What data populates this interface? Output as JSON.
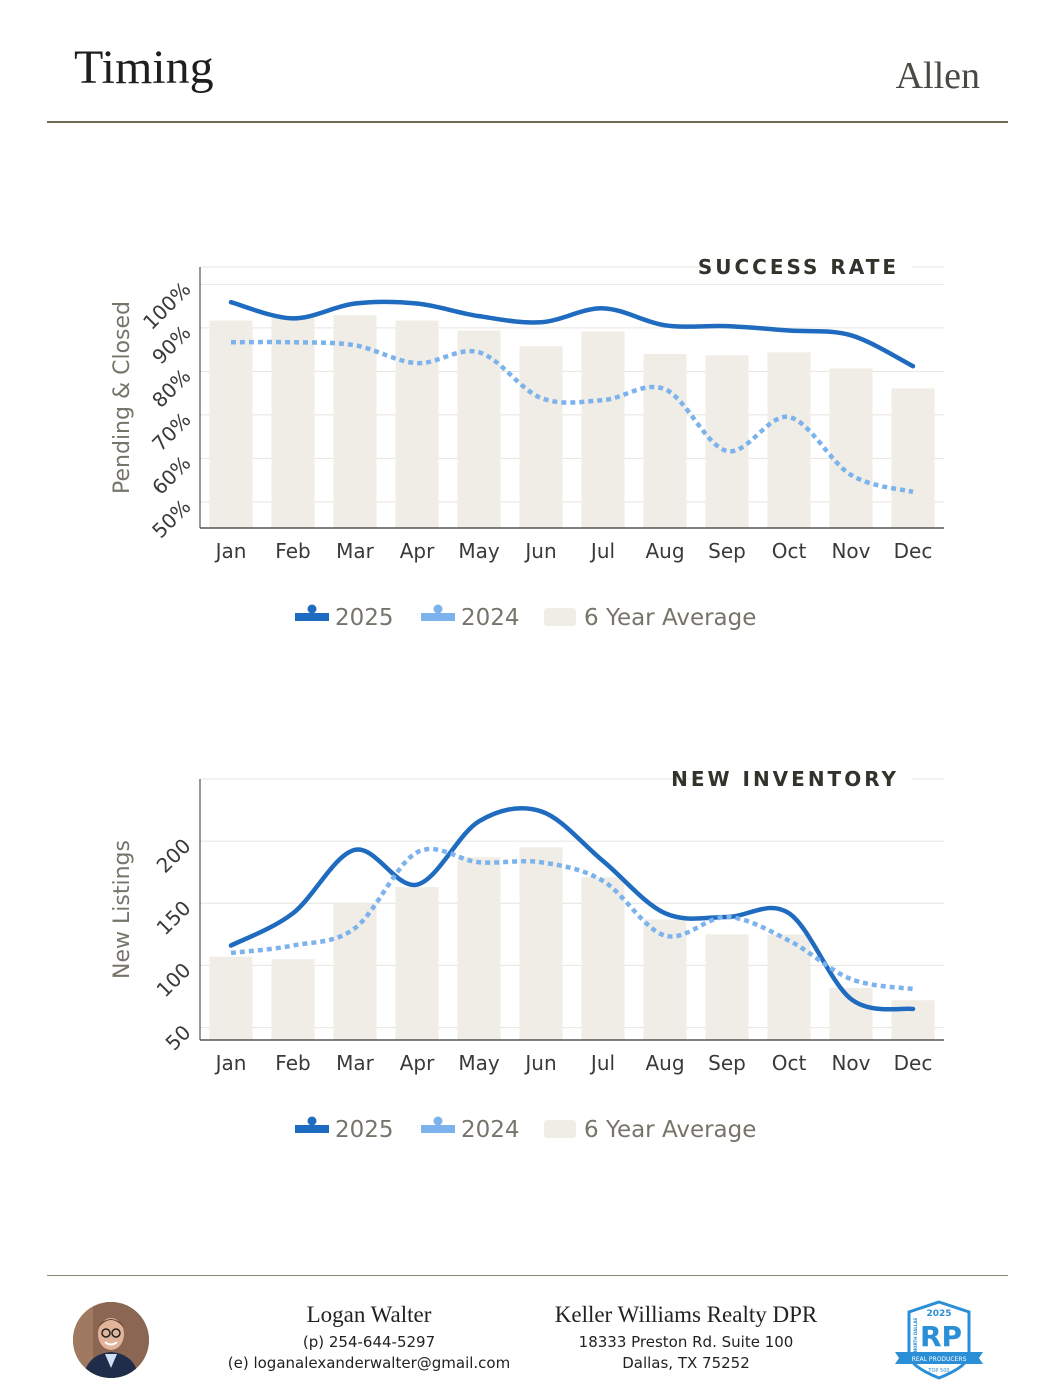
{
  "header": {
    "title": "Timing",
    "location": "Allen"
  },
  "colors": {
    "series_2025": "#1f6bbf",
    "series_2024": "#7db3ec",
    "average_bar": "#f0ede6",
    "axis_text": "#3a3a3a",
    "muted_text": "#77746a"
  },
  "chart_data": [
    {
      "type": "bar+line",
      "title": "SUCCESS RATE",
      "ylabel": "Pending & Closed",
      "ylim": [
        44,
        104
      ],
      "yticks": [
        50,
        60,
        70,
        80,
        90,
        100
      ],
      "ytick_labels": [
        "50%",
        "60%",
        "70%",
        "80%",
        "90%",
        "100%"
      ],
      "grid": true,
      "categories": [
        "Jan",
        "Feb",
        "Mar",
        "Apr",
        "May",
        "Jun",
        "Jul",
        "Aug",
        "Sep",
        "Oct",
        "Nov",
        "Dec"
      ],
      "series": [
        {
          "name": "2025",
          "kind": "line",
          "style": "solid",
          "color": "#1f6bbf",
          "values": [
            95.9,
            92.2,
            95.6,
            95.6,
            92.7,
            91.3,
            94.5,
            90.6,
            90.4,
            89.4,
            88.3,
            81.2
          ]
        },
        {
          "name": "2024",
          "kind": "line",
          "style": "dotted",
          "color": "#7db3ec",
          "values": [
            86.7,
            86.7,
            86.0,
            81.9,
            84.4,
            73.9,
            73.4,
            75.9,
            61.7,
            69.5,
            56.2,
            52.3
          ]
        },
        {
          "name": "6 Year Average",
          "kind": "bar",
          "color": "#f0ede6",
          "values": [
            91.7,
            92.4,
            92.9,
            91.7,
            89.4,
            85.8,
            89.2,
            84.0,
            83.7,
            84.4,
            80.7,
            76.1
          ]
        }
      ],
      "legend": [
        "2025",
        "2024",
        "6 Year Average"
      ],
      "legend_placement": "bottom"
    },
    {
      "type": "bar+line",
      "title": "NEW INVENTORY",
      "ylabel": "New Listings",
      "ylim": [
        40,
        250
      ],
      "yticks": [
        50,
        100,
        150,
        200
      ],
      "ytick_labels": [
        "50",
        "100",
        "150",
        "200"
      ],
      "grid": true,
      "categories": [
        "Jan",
        "Feb",
        "Mar",
        "Apr",
        "May",
        "Jun",
        "Jul",
        "Aug",
        "Sep",
        "Oct",
        "Nov",
        "Dec"
      ],
      "series": [
        {
          "name": "2025",
          "kind": "line",
          "style": "solid",
          "color": "#1f6bbf",
          "values": [
            116,
            142,
            193,
            165,
            216,
            224,
            184,
            142,
            139,
            142,
            73,
            65
          ]
        },
        {
          "name": "2024",
          "kind": "line",
          "style": "dotted",
          "color": "#7db3ec",
          "values": [
            110,
            116,
            130,
            191,
            183,
            183,
            168,
            124,
            139,
            120,
            89,
            81
          ]
        },
        {
          "name": "6 Year Average",
          "kind": "bar",
          "color": "#f0ede6",
          "values": [
            107,
            105,
            150,
            163,
            187,
            195,
            171,
            137,
            125,
            125,
            82,
            72
          ]
        }
      ],
      "legend": [
        "2025",
        "2024",
        "6 Year Average"
      ],
      "legend_placement": "bottom"
    }
  ],
  "footer": {
    "agent_name": "Logan Walter",
    "phone": "(p) 254-644-5297",
    "email": "(e) loganalexanderwalter@gmail.com",
    "brokerage": "Keller Williams Realty DPR",
    "address_line1": "18333 Preston Rd. Suite 100",
    "address_line2": "Dallas, TX 75252",
    "badge": {
      "year": "2025",
      "mark": "RP",
      "region": "NORTH DALLAS",
      "ribbon": "REAL PRODUCERS",
      "rank": "TOP 500"
    }
  }
}
